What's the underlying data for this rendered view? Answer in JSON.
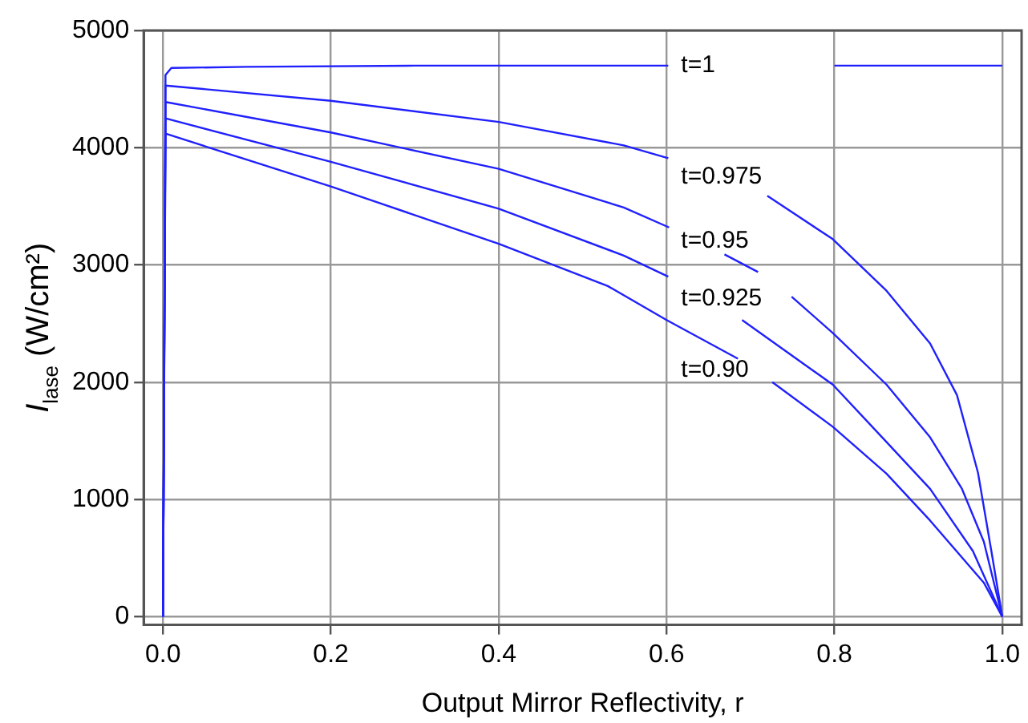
{
  "chart_data": {
    "type": "line",
    "xlabel": "Output Mirror Reflectivity, r",
    "ylabel": "I$_{lase}$ (W/cm²)",
    "xlim": [
      -0.023,
      1.023
    ],
    "ylim": [
      -70,
      5000
    ],
    "xticks": [
      {
        "value": 0,
        "label": "0.0"
      },
      0.2,
      0.4,
      0.6,
      0.8,
      {
        "value": 1,
        "label": "1.0"
      }
    ],
    "yticks": [
      0,
      1000,
      2000,
      3000,
      4000,
      5000
    ],
    "grid": true,
    "legend": false,
    "marker": "none",
    "line_style": "solid",
    "series": [
      {
        "name": "t=1",
        "color": "#2020ff",
        "x": [
          0,
          0.003,
          0.01,
          0.1,
          0.3,
          0.5,
          0.602,
          0.68,
          0.8,
          1.0
        ],
        "values": [
          0,
          4620,
          4680,
          4690,
          4700,
          4700,
          4700,
          null,
          4700,
          4700
        ]
      },
      {
        "name": "t=0.975",
        "color": "#2020ff",
        "x": [
          0,
          0.003,
          0.2,
          0.4,
          0.549,
          0.602,
          0.66,
          0.72,
          0.798,
          0.862,
          0.914,
          0.946,
          0.971,
          0.987,
          1.0
        ],
        "values": [
          0,
          4530,
          4400,
          4220,
          4020,
          3910,
          null,
          3590,
          3220,
          2780,
          2330,
          1890,
          1230,
          560,
          0
        ]
      },
      {
        "name": "t=0.95",
        "color": "#2020ff",
        "x": [
          0,
          0.003,
          0.2,
          0.4,
          0.549,
          0.603,
          0.64,
          0.669,
          0.709,
          0.73,
          0.749,
          0.798,
          0.862,
          0.914,
          0.952,
          0.978,
          1.0
        ],
        "values": [
          0,
          4390,
          4130,
          3820,
          3490,
          3320,
          null,
          3090,
          2940,
          null,
          2730,
          2420,
          1980,
          1530,
          1090,
          640,
          0
        ]
      },
      {
        "name": "t=0.925",
        "color": "#2020ff",
        "x": [
          0,
          0.003,
          0.2,
          0.4,
          0.549,
          0.602,
          0.65,
          0.69,
          0.798,
          0.862,
          0.914,
          0.965,
          1.0
        ],
        "values": [
          0,
          4250,
          3880,
          3480,
          3080,
          2900,
          null,
          2530,
          1980,
          1490,
          1090,
          560,
          0
        ]
      },
      {
        "name": "t=0.90",
        "color": "#2020ff",
        "x": [
          0,
          0.003,
          0.2,
          0.4,
          0.53,
          0.6,
          0.685,
          0.705,
          0.726,
          0.798,
          0.862,
          0.914,
          0.978,
          1.0
        ],
        "values": [
          0,
          4120,
          3670,
          3180,
          2820,
          2530,
          2200,
          null,
          2000,
          1620,
          1220,
          820,
          290,
          0
        ]
      }
    ]
  }
}
